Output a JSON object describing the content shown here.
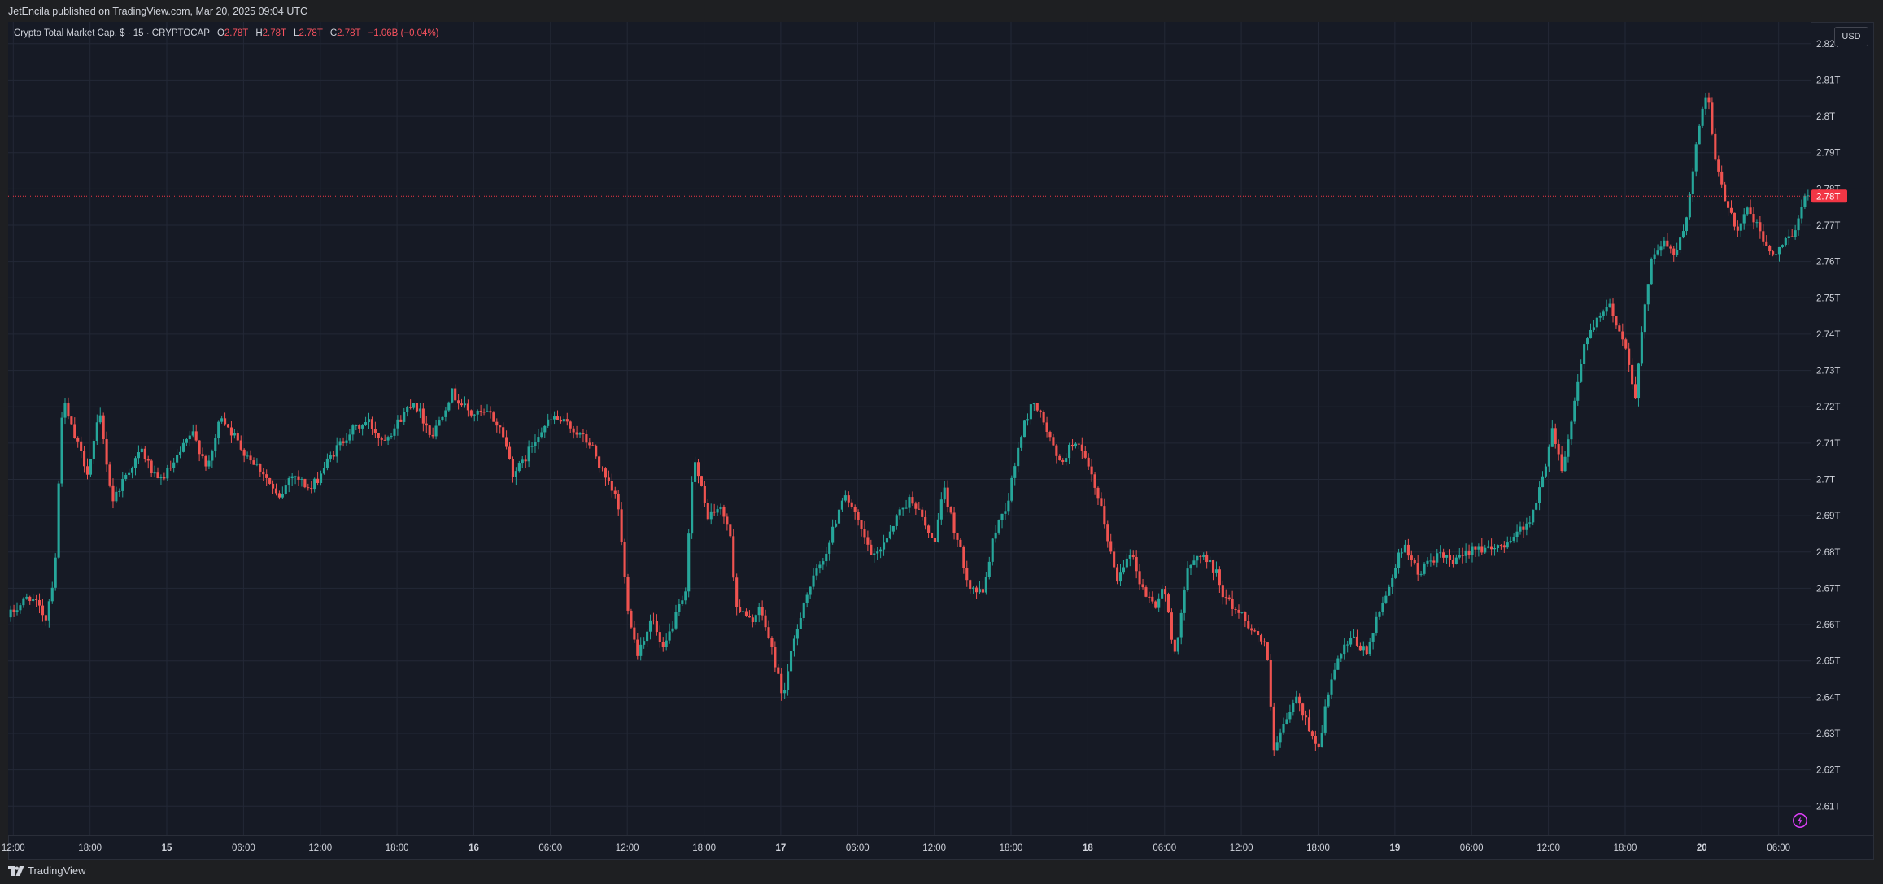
{
  "header": {
    "publish_text": "JetEncila published on TradingView.com, Mar 20, 2025 09:04 UTC"
  },
  "legend": {
    "symbol": "Crypto Total Market Cap, $ · 15 · CRYPTOCAP",
    "open_label": "O",
    "open": "2.78T",
    "high_label": "H",
    "high": "2.78T",
    "low_label": "L",
    "low": "2.78T",
    "close_label": "C",
    "close": "2.78T",
    "change": "−1.06B (−0.04%)"
  },
  "currency_button": "USD",
  "footer": {
    "brand": "TradingView"
  },
  "colors": {
    "background": "#161a25",
    "grid": "#232836",
    "up": "#26a69a",
    "down": "#ef5350",
    "text": "#d1d4dc",
    "price_tag": "#f23645"
  },
  "icons": {
    "logo": "tradingview-logo-icon",
    "flash": "lightning-circle-icon"
  },
  "chart_data": {
    "type": "candlestick",
    "title": "",
    "y_axis_side": "right",
    "y_unit": "T",
    "ylim": [
      2.602,
      2.826
    ],
    "y_ticks": [
      2.61,
      2.62,
      2.63,
      2.64,
      2.65,
      2.66,
      2.67,
      2.68,
      2.69,
      2.7,
      2.71,
      2.72,
      2.73,
      2.74,
      2.75,
      2.76,
      2.77,
      2.78,
      2.79,
      2.8,
      2.81,
      2.82
    ],
    "y_tick_labels": [
      "2.61T",
      "2.62T",
      "2.63T",
      "2.64T",
      "2.65T",
      "2.66T",
      "2.67T",
      "2.68T",
      "2.69T",
      "2.7T",
      "2.71T",
      "2.72T",
      "2.73T",
      "2.74T",
      "2.75T",
      "2.76T",
      "2.77T",
      "2.78T",
      "2.79T",
      "2.8T",
      "2.81T",
      "2.82T"
    ],
    "x_unit": "hours since Mar 14 12:00",
    "xlim": [
      -0.4,
      140.5
    ],
    "x_ticks": [
      {
        "t": 0,
        "label": "12:00"
      },
      {
        "t": 6,
        "label": "18:00"
      },
      {
        "t": 12,
        "label": "15",
        "bold": true
      },
      {
        "t": 18,
        "label": "06:00"
      },
      {
        "t": 24,
        "label": "12:00"
      },
      {
        "t": 30,
        "label": "18:00"
      },
      {
        "t": 36,
        "label": "16",
        "bold": true
      },
      {
        "t": 42,
        "label": "06:00"
      },
      {
        "t": 48,
        "label": "12:00"
      },
      {
        "t": 54,
        "label": "18:00"
      },
      {
        "t": 60,
        "label": "17",
        "bold": true
      },
      {
        "t": 66,
        "label": "06:00"
      },
      {
        "t": 72,
        "label": "12:00"
      },
      {
        "t": 78,
        "label": "18:00"
      },
      {
        "t": 84,
        "label": "18",
        "bold": true
      },
      {
        "t": 90,
        "label": "06:00"
      },
      {
        "t": 96,
        "label": "12:00"
      },
      {
        "t": 102,
        "label": "18:00"
      },
      {
        "t": 108,
        "label": "19",
        "bold": true
      },
      {
        "t": 114,
        "label": "06:00"
      },
      {
        "t": 120,
        "label": "12:00"
      },
      {
        "t": 126,
        "label": "18:00"
      },
      {
        "t": 132,
        "label": "20",
        "bold": true
      },
      {
        "t": 138,
        "label": "06:00"
      }
    ],
    "last_price": 2.778,
    "last_price_label": "2.78T",
    "interval_minutes": 15,
    "price_path": [
      [
        -0.2,
        2.662
      ],
      [
        1.5,
        2.668
      ],
      [
        2.8,
        2.662
      ],
      [
        3.5,
        2.675
      ],
      [
        4.1,
        2.722
      ],
      [
        5.0,
        2.712
      ],
      [
        6.1,
        2.702
      ],
      [
        7.0,
        2.718
      ],
      [
        8.0,
        2.694
      ],
      [
        9.0,
        2.701
      ],
      [
        10.3,
        2.708
      ],
      [
        11.5,
        2.699
      ],
      [
        12.8,
        2.704
      ],
      [
        14.2,
        2.713
      ],
      [
        15.5,
        2.703
      ],
      [
        16.5,
        2.718
      ],
      [
        18.0,
        2.709
      ],
      [
        19.8,
        2.702
      ],
      [
        21.0,
        2.694
      ],
      [
        22.0,
        2.702
      ],
      [
        23.5,
        2.697
      ],
      [
        25.0,
        2.706
      ],
      [
        26.5,
        2.713
      ],
      [
        28.0,
        2.716
      ],
      [
        29.0,
        2.711
      ],
      [
        30.0,
        2.714
      ],
      [
        31.5,
        2.722
      ],
      [
        33.0,
        2.712
      ],
      [
        34.5,
        2.724
      ],
      [
        36.0,
        2.718
      ],
      [
        37.5,
        2.718
      ],
      [
        38.5,
        2.713
      ],
      [
        39.3,
        2.702
      ],
      [
        40.0,
        2.704
      ],
      [
        41.3,
        2.713
      ],
      [
        42.5,
        2.717
      ],
      [
        44.0,
        2.714
      ],
      [
        45.5,
        2.709
      ],
      [
        46.5,
        2.7
      ],
      [
        47.5,
        2.694
      ],
      [
        48.2,
        2.667
      ],
      [
        49.0,
        2.652
      ],
      [
        50.2,
        2.662
      ],
      [
        51.0,
        2.652
      ],
      [
        52.0,
        2.662
      ],
      [
        52.8,
        2.668
      ],
      [
        53.4,
        2.707
      ],
      [
        54.5,
        2.69
      ],
      [
        55.5,
        2.692
      ],
      [
        56.2,
        2.687
      ],
      [
        56.8,
        2.665
      ],
      [
        57.8,
        2.661
      ],
      [
        58.7,
        2.664
      ],
      [
        59.7,
        2.651
      ],
      [
        60.4,
        2.64
      ],
      [
        61.2,
        2.654
      ],
      [
        62.0,
        2.666
      ],
      [
        63.0,
        2.674
      ],
      [
        64.0,
        2.682
      ],
      [
        65.2,
        2.697
      ],
      [
        66.5,
        2.686
      ],
      [
        67.5,
        2.678
      ],
      [
        68.5,
        2.684
      ],
      [
        69.5,
        2.691
      ],
      [
        70.5,
        2.695
      ],
      [
        71.3,
        2.689
      ],
      [
        72.2,
        2.682
      ],
      [
        73.0,
        2.697
      ],
      [
        74.0,
        2.684
      ],
      [
        75.0,
        2.671
      ],
      [
        76.0,
        2.668
      ],
      [
        77.0,
        2.686
      ],
      [
        78.0,
        2.694
      ],
      [
        79.0,
        2.712
      ],
      [
        80.0,
        2.722
      ],
      [
        81.0,
        2.714
      ],
      [
        82.0,
        2.704
      ],
      [
        83.3,
        2.711
      ],
      [
        84.5,
        2.701
      ],
      [
        85.5,
        2.689
      ],
      [
        86.5,
        2.672
      ],
      [
        87.5,
        2.681
      ],
      [
        88.5,
        2.67
      ],
      [
        89.5,
        2.665
      ],
      [
        90.2,
        2.671
      ],
      [
        91.0,
        2.651
      ],
      [
        92.0,
        2.674
      ],
      [
        93.0,
        2.68
      ],
      [
        94.2,
        2.675
      ],
      [
        95.0,
        2.667
      ],
      [
        96.2,
        2.663
      ],
      [
        97.3,
        2.658
      ],
      [
        98.2,
        2.654
      ],
      [
        98.8,
        2.625
      ],
      [
        99.6,
        2.632
      ],
      [
        100.5,
        2.64
      ],
      [
        101.5,
        2.632
      ],
      [
        102.3,
        2.626
      ],
      [
        103.0,
        2.641
      ],
      [
        104.0,
        2.652
      ],
      [
        105.0,
        2.656
      ],
      [
        106.0,
        2.652
      ],
      [
        107.0,
        2.663
      ],
      [
        108.0,
        2.673
      ],
      [
        109.0,
        2.683
      ],
      [
        110.0,
        2.674
      ],
      [
        111.5,
        2.679
      ],
      [
        113.0,
        2.677
      ],
      [
        114.5,
        2.682
      ],
      [
        115.8,
        2.68
      ],
      [
        117.0,
        2.683
      ],
      [
        118.0,
        2.686
      ],
      [
        119.0,
        2.69
      ],
      [
        120.0,
        2.703
      ],
      [
        120.5,
        2.715
      ],
      [
        121.3,
        2.703
      ],
      [
        122.0,
        2.715
      ],
      [
        123.0,
        2.737
      ],
      [
        124.0,
        2.743
      ],
      [
        125.0,
        2.748
      ],
      [
        125.8,
        2.741
      ],
      [
        126.5,
        2.734
      ],
      [
        127.0,
        2.722
      ],
      [
        127.5,
        2.738
      ],
      [
        128.3,
        2.762
      ],
      [
        129.3,
        2.765
      ],
      [
        130.2,
        2.762
      ],
      [
        131.0,
        2.771
      ],
      [
        131.5,
        2.785
      ],
      [
        132.2,
        2.801
      ],
      [
        132.7,
        2.806
      ],
      [
        133.2,
        2.79
      ],
      [
        133.7,
        2.781
      ],
      [
        134.5,
        2.774
      ],
      [
        135.0,
        2.768
      ],
      [
        135.7,
        2.775
      ],
      [
        136.5,
        2.77
      ],
      [
        137.2,
        2.765
      ],
      [
        138.0,
        2.761
      ],
      [
        138.8,
        2.766
      ],
      [
        139.5,
        2.769
      ],
      [
        140.0,
        2.774
      ],
      [
        140.4,
        2.778
      ]
    ]
  }
}
